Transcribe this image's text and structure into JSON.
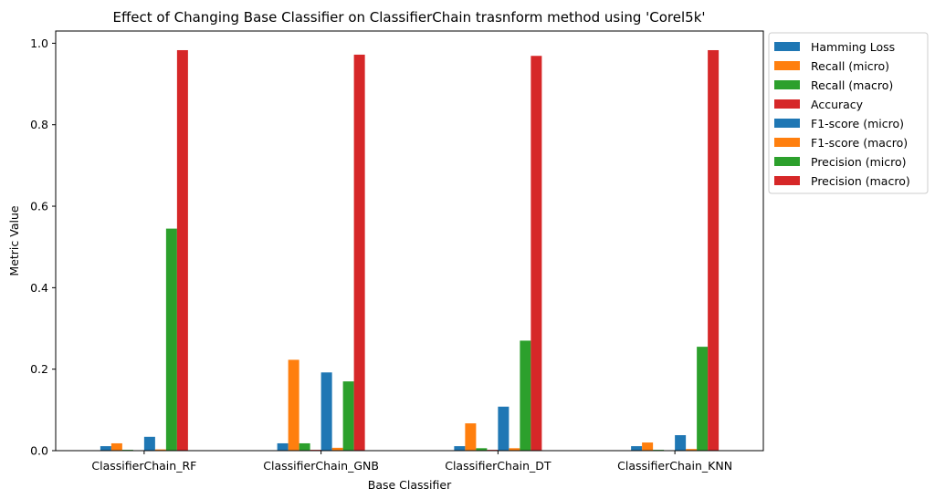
{
  "chart_data": {
    "type": "bar",
    "title": "Effect of Changing Base Classifier on ClassifierChain trasnform method using 'Corel5k'",
    "xlabel": "Base Classifier",
    "ylabel": "Metric Value",
    "ylim": [
      0,
      1.03
    ],
    "yticks": [
      "0.0",
      "0.2",
      "0.4",
      "0.6",
      "0.8",
      "1.0"
    ],
    "grid": false,
    "legend_position": "outside-right-top",
    "categories": [
      "ClassifierChain_RF",
      "ClassifierChain_GNB",
      "ClassifierChain_DT",
      "ClassifierChain_KNN"
    ],
    "series": [
      {
        "name": "Hamming Loss",
        "color": "#1f77b4",
        "values": [
          0.011,
          0.018,
          0.011,
          0.011
        ]
      },
      {
        "name": "Recall (micro)",
        "color": "#ff7f0e",
        "values": [
          0.018,
          0.223,
          0.067,
          0.02
        ]
      },
      {
        "name": "Recall (macro)",
        "color": "#2ca02c",
        "values": [
          0.002,
          0.018,
          0.006,
          0.002
        ]
      },
      {
        "name": "Accuracy",
        "color": "#d62728",
        "values": [
          0.0,
          0.002,
          0.002,
          0.001
        ]
      },
      {
        "name": "F1-score (micro)",
        "color": "#1f77b4",
        "values": [
          0.034,
          0.192,
          0.108,
          0.038
        ]
      },
      {
        "name": "F1-score (macro)",
        "color": "#ff7f0e",
        "values": [
          0.003,
          0.007,
          0.006,
          0.004
        ]
      },
      {
        "name": "Precision (micro)",
        "color": "#2ca02c",
        "values": [
          0.545,
          0.17,
          0.27,
          0.255
        ]
      },
      {
        "name": "Precision (macro)",
        "color": "#d62728",
        "values": [
          0.983,
          0.972,
          0.969,
          0.983
        ]
      }
    ]
  }
}
